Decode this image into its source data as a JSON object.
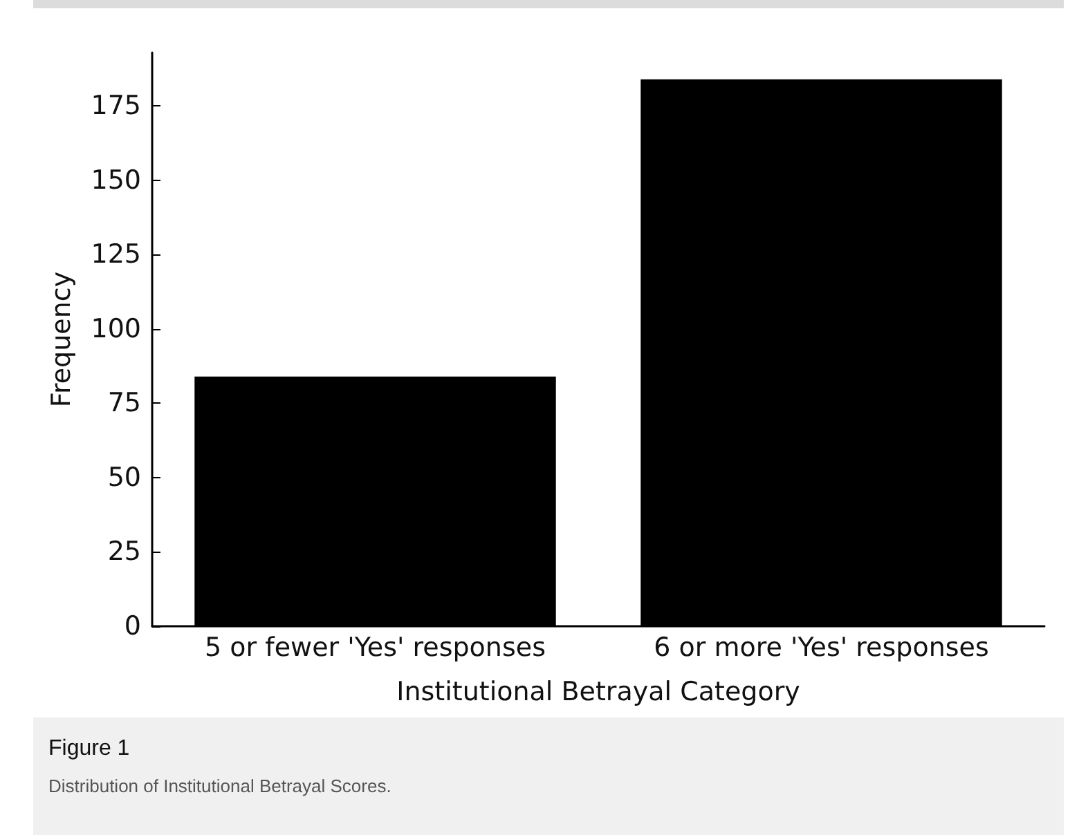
{
  "chart_data": {
    "type": "bar",
    "title": "Figure 1",
    "subtitle": "Distribution of Institutional Betrayal Scores.",
    "xlabel": "Institutional Betrayal Category",
    "ylabel": "Frequency",
    "categories": [
      "5 or fewer 'Yes' responses",
      "6 or more 'Yes' responses"
    ],
    "values": [
      84,
      184
    ],
    "color": "#000000",
    "ylim": [
      0,
      193
    ],
    "yticks": [
      0,
      25,
      50,
      75,
      100,
      125,
      150,
      175
    ],
    "grid": false
  }
}
